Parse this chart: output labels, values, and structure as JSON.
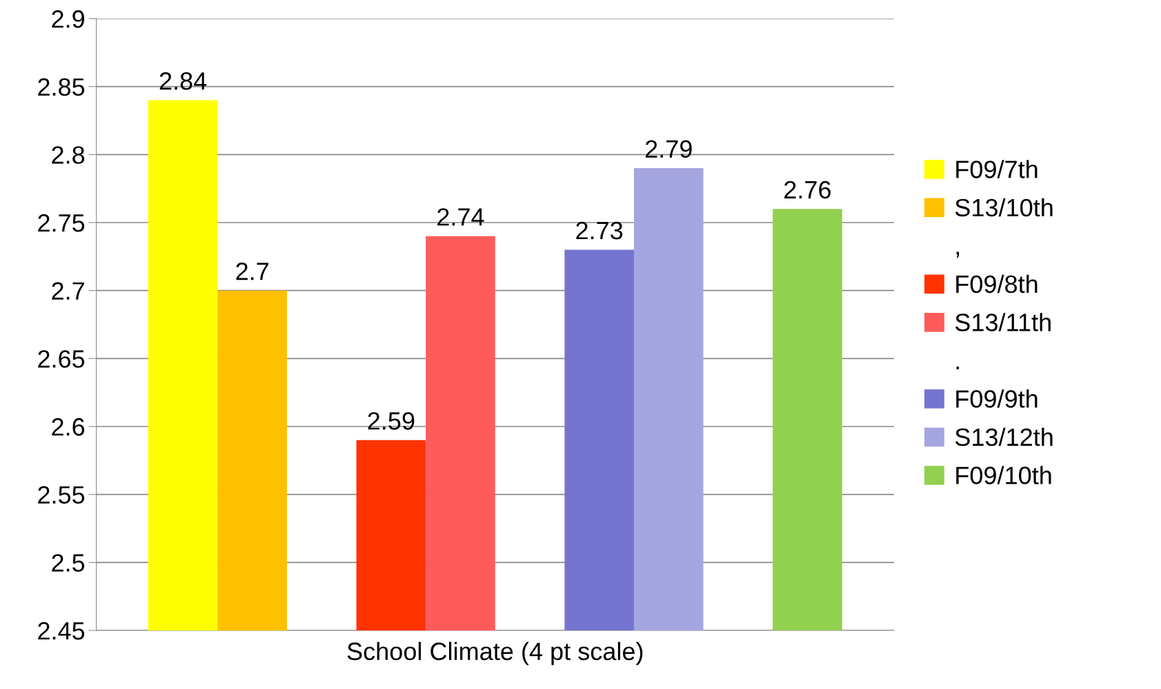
{
  "chart_data": {
    "type": "bar",
    "categories": [
      "School Climate (4 pt scale)"
    ],
    "series": [
      {
        "name": "F09/7th",
        "color": "#ffff00",
        "values": [
          2.84
        ]
      },
      {
        "name": "S13/10th",
        "color": "#ffc000",
        "values": [
          2.7
        ]
      },
      {
        "name": ",",
        "values": [
          null
        ]
      },
      {
        "name": "F09/8th",
        "color": "#ff3300",
        "values": [
          2.59
        ]
      },
      {
        "name": "S13/11th",
        "color": "#ff5b5b",
        "values": [
          2.74
        ]
      },
      {
        "name": ".",
        "values": [
          null
        ]
      },
      {
        "name": "F09/9th",
        "color": "#7575d0",
        "values": [
          2.73
        ]
      },
      {
        "name": "S13/12th",
        "color": "#a5a5e0",
        "values": [
          2.79
        ]
      },
      {
        "values": [
          null
        ]
      },
      {
        "name": "F09/10th",
        "color": "#92d050",
        "values": [
          2.76
        ]
      }
    ],
    "ylim": [
      2.45,
      2.9
    ],
    "yticks": [
      2.45,
      2.5,
      2.55,
      2.6,
      2.65,
      2.7,
      2.75,
      2.8,
      2.85,
      2.9
    ],
    "grid": "y",
    "legend": "right",
    "data_labels": true
  }
}
